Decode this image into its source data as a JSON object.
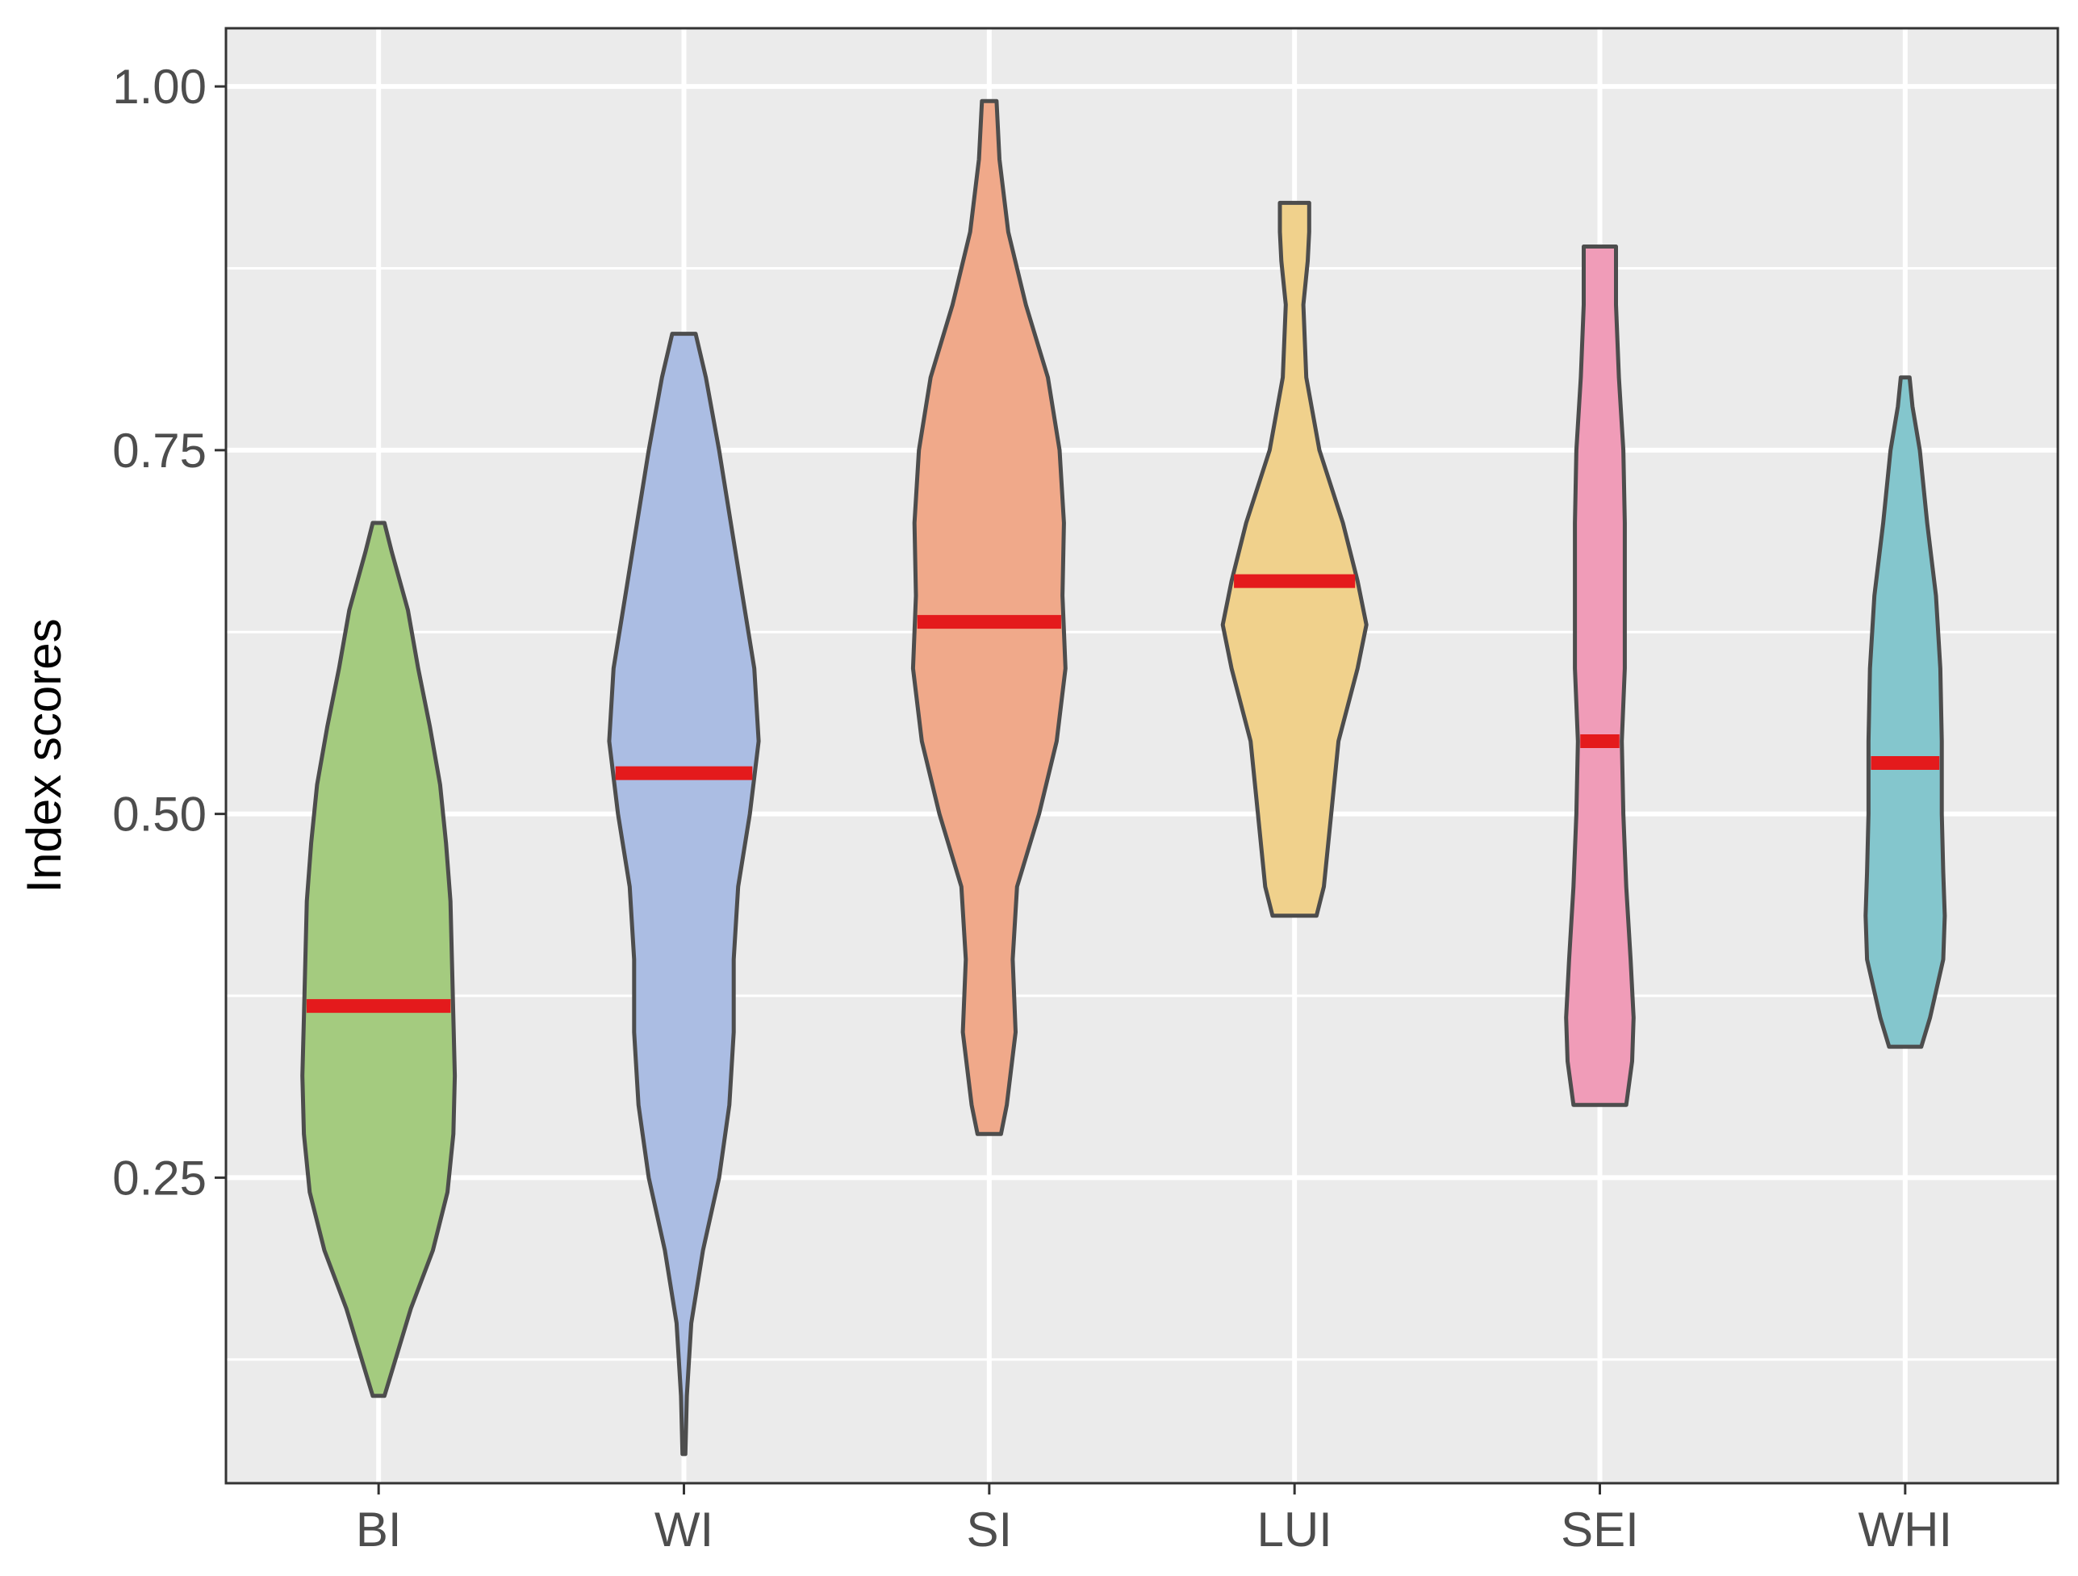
{
  "chart_data": {
    "type": "violin",
    "title": "",
    "xlabel": "",
    "ylabel": "Index scores",
    "ylim": [
      0.04,
      1.04
    ],
    "yticks": [
      0.25,
      0.5,
      0.75,
      1.0
    ],
    "ytick_labels": [
      "0.25",
      "0.50",
      "0.75",
      "1.00"
    ],
    "y_minor_ticks": [
      0.125,
      0.375,
      0.625,
      0.875
    ],
    "grid": true,
    "legend": "none",
    "panel_background": "#ebebeb",
    "grid_color": "#ffffff",
    "outline_color": "#4d4d4d",
    "median_color": "#e41a1c",
    "categories": [
      "BI",
      "WI",
      "SI",
      "LUI",
      "SEI",
      "WHI"
    ],
    "series": [
      {
        "category": "BI",
        "color": "#a4cb7f",
        "min": 0.1,
        "max": 0.7,
        "median": 0.368,
        "density": [
          [
            0.1,
            0.04
          ],
          [
            0.12,
            0.1
          ],
          [
            0.16,
            0.22
          ],
          [
            0.2,
            0.37
          ],
          [
            0.24,
            0.47
          ],
          [
            0.28,
            0.51
          ],
          [
            0.32,
            0.52
          ],
          [
            0.36,
            0.51
          ],
          [
            0.4,
            0.5
          ],
          [
            0.44,
            0.49
          ],
          [
            0.48,
            0.46
          ],
          [
            0.52,
            0.42
          ],
          [
            0.56,
            0.35
          ],
          [
            0.6,
            0.27
          ],
          [
            0.64,
            0.2
          ],
          [
            0.68,
            0.09
          ],
          [
            0.7,
            0.04
          ]
        ]
      },
      {
        "category": "WI",
        "color": "#abbde3",
        "min": 0.06,
        "max": 0.83,
        "median": 0.528,
        "density": [
          [
            0.06,
            0.01
          ],
          [
            0.1,
            0.02
          ],
          [
            0.15,
            0.05
          ],
          [
            0.2,
            0.13
          ],
          [
            0.25,
            0.24
          ],
          [
            0.3,
            0.31
          ],
          [
            0.35,
            0.34
          ],
          [
            0.4,
            0.34
          ],
          [
            0.45,
            0.37
          ],
          [
            0.5,
            0.45
          ],
          [
            0.55,
            0.51
          ],
          [
            0.6,
            0.48
          ],
          [
            0.65,
            0.4
          ],
          [
            0.7,
            0.32
          ],
          [
            0.75,
            0.24
          ],
          [
            0.8,
            0.15
          ],
          [
            0.83,
            0.08
          ]
        ]
      },
      {
        "category": "SI",
        "color": "#f0a98a",
        "min": 0.28,
        "max": 0.99,
        "median": 0.632,
        "density": [
          [
            0.28,
            0.08
          ],
          [
            0.3,
            0.12
          ],
          [
            0.35,
            0.18
          ],
          [
            0.4,
            0.16
          ],
          [
            0.45,
            0.19
          ],
          [
            0.5,
            0.34
          ],
          [
            0.55,
            0.46
          ],
          [
            0.6,
            0.52
          ],
          [
            0.65,
            0.5
          ],
          [
            0.7,
            0.51
          ],
          [
            0.75,
            0.48
          ],
          [
            0.8,
            0.4
          ],
          [
            0.85,
            0.25
          ],
          [
            0.9,
            0.13
          ],
          [
            0.95,
            0.07
          ],
          [
            0.99,
            0.05
          ]
        ]
      },
      {
        "category": "LUI",
        "color": "#f0d18c",
        "min": 0.43,
        "max": 0.92,
        "median": 0.66,
        "density": [
          [
            0.43,
            0.15
          ],
          [
            0.45,
            0.2
          ],
          [
            0.5,
            0.25
          ],
          [
            0.55,
            0.3
          ],
          [
            0.6,
            0.43
          ],
          [
            0.63,
            0.49
          ],
          [
            0.66,
            0.43
          ],
          [
            0.7,
            0.33
          ],
          [
            0.75,
            0.17
          ],
          [
            0.8,
            0.08
          ],
          [
            0.85,
            0.06
          ],
          [
            0.88,
            0.09
          ],
          [
            0.9,
            0.1
          ],
          [
            0.92,
            0.1
          ]
        ]
      },
      {
        "category": "SEI",
        "color": "#f09cb8",
        "min": 0.3,
        "max": 0.89,
        "median": 0.55,
        "density": [
          [
            0.3,
            0.18
          ],
          [
            0.33,
            0.22
          ],
          [
            0.36,
            0.23
          ],
          [
            0.4,
            0.21
          ],
          [
            0.45,
            0.18
          ],
          [
            0.5,
            0.16
          ],
          [
            0.55,
            0.15
          ],
          [
            0.6,
            0.17
          ],
          [
            0.65,
            0.17
          ],
          [
            0.7,
            0.17
          ],
          [
            0.75,
            0.16
          ],
          [
            0.8,
            0.13
          ],
          [
            0.85,
            0.11
          ],
          [
            0.89,
            0.11
          ]
        ]
      },
      {
        "category": "WHI",
        "color": "#84c6cd",
        "min": 0.34,
        "max": 0.8,
        "median": 0.535,
        "density": [
          [
            0.34,
            0.11
          ],
          [
            0.36,
            0.17
          ],
          [
            0.4,
            0.26
          ],
          [
            0.43,
            0.27
          ],
          [
            0.46,
            0.26
          ],
          [
            0.5,
            0.25
          ],
          [
            0.55,
            0.25
          ],
          [
            0.6,
            0.24
          ],
          [
            0.65,
            0.21
          ],
          [
            0.7,
            0.15
          ],
          [
            0.75,
            0.1
          ],
          [
            0.78,
            0.05
          ],
          [
            0.8,
            0.03
          ]
        ]
      }
    ]
  }
}
